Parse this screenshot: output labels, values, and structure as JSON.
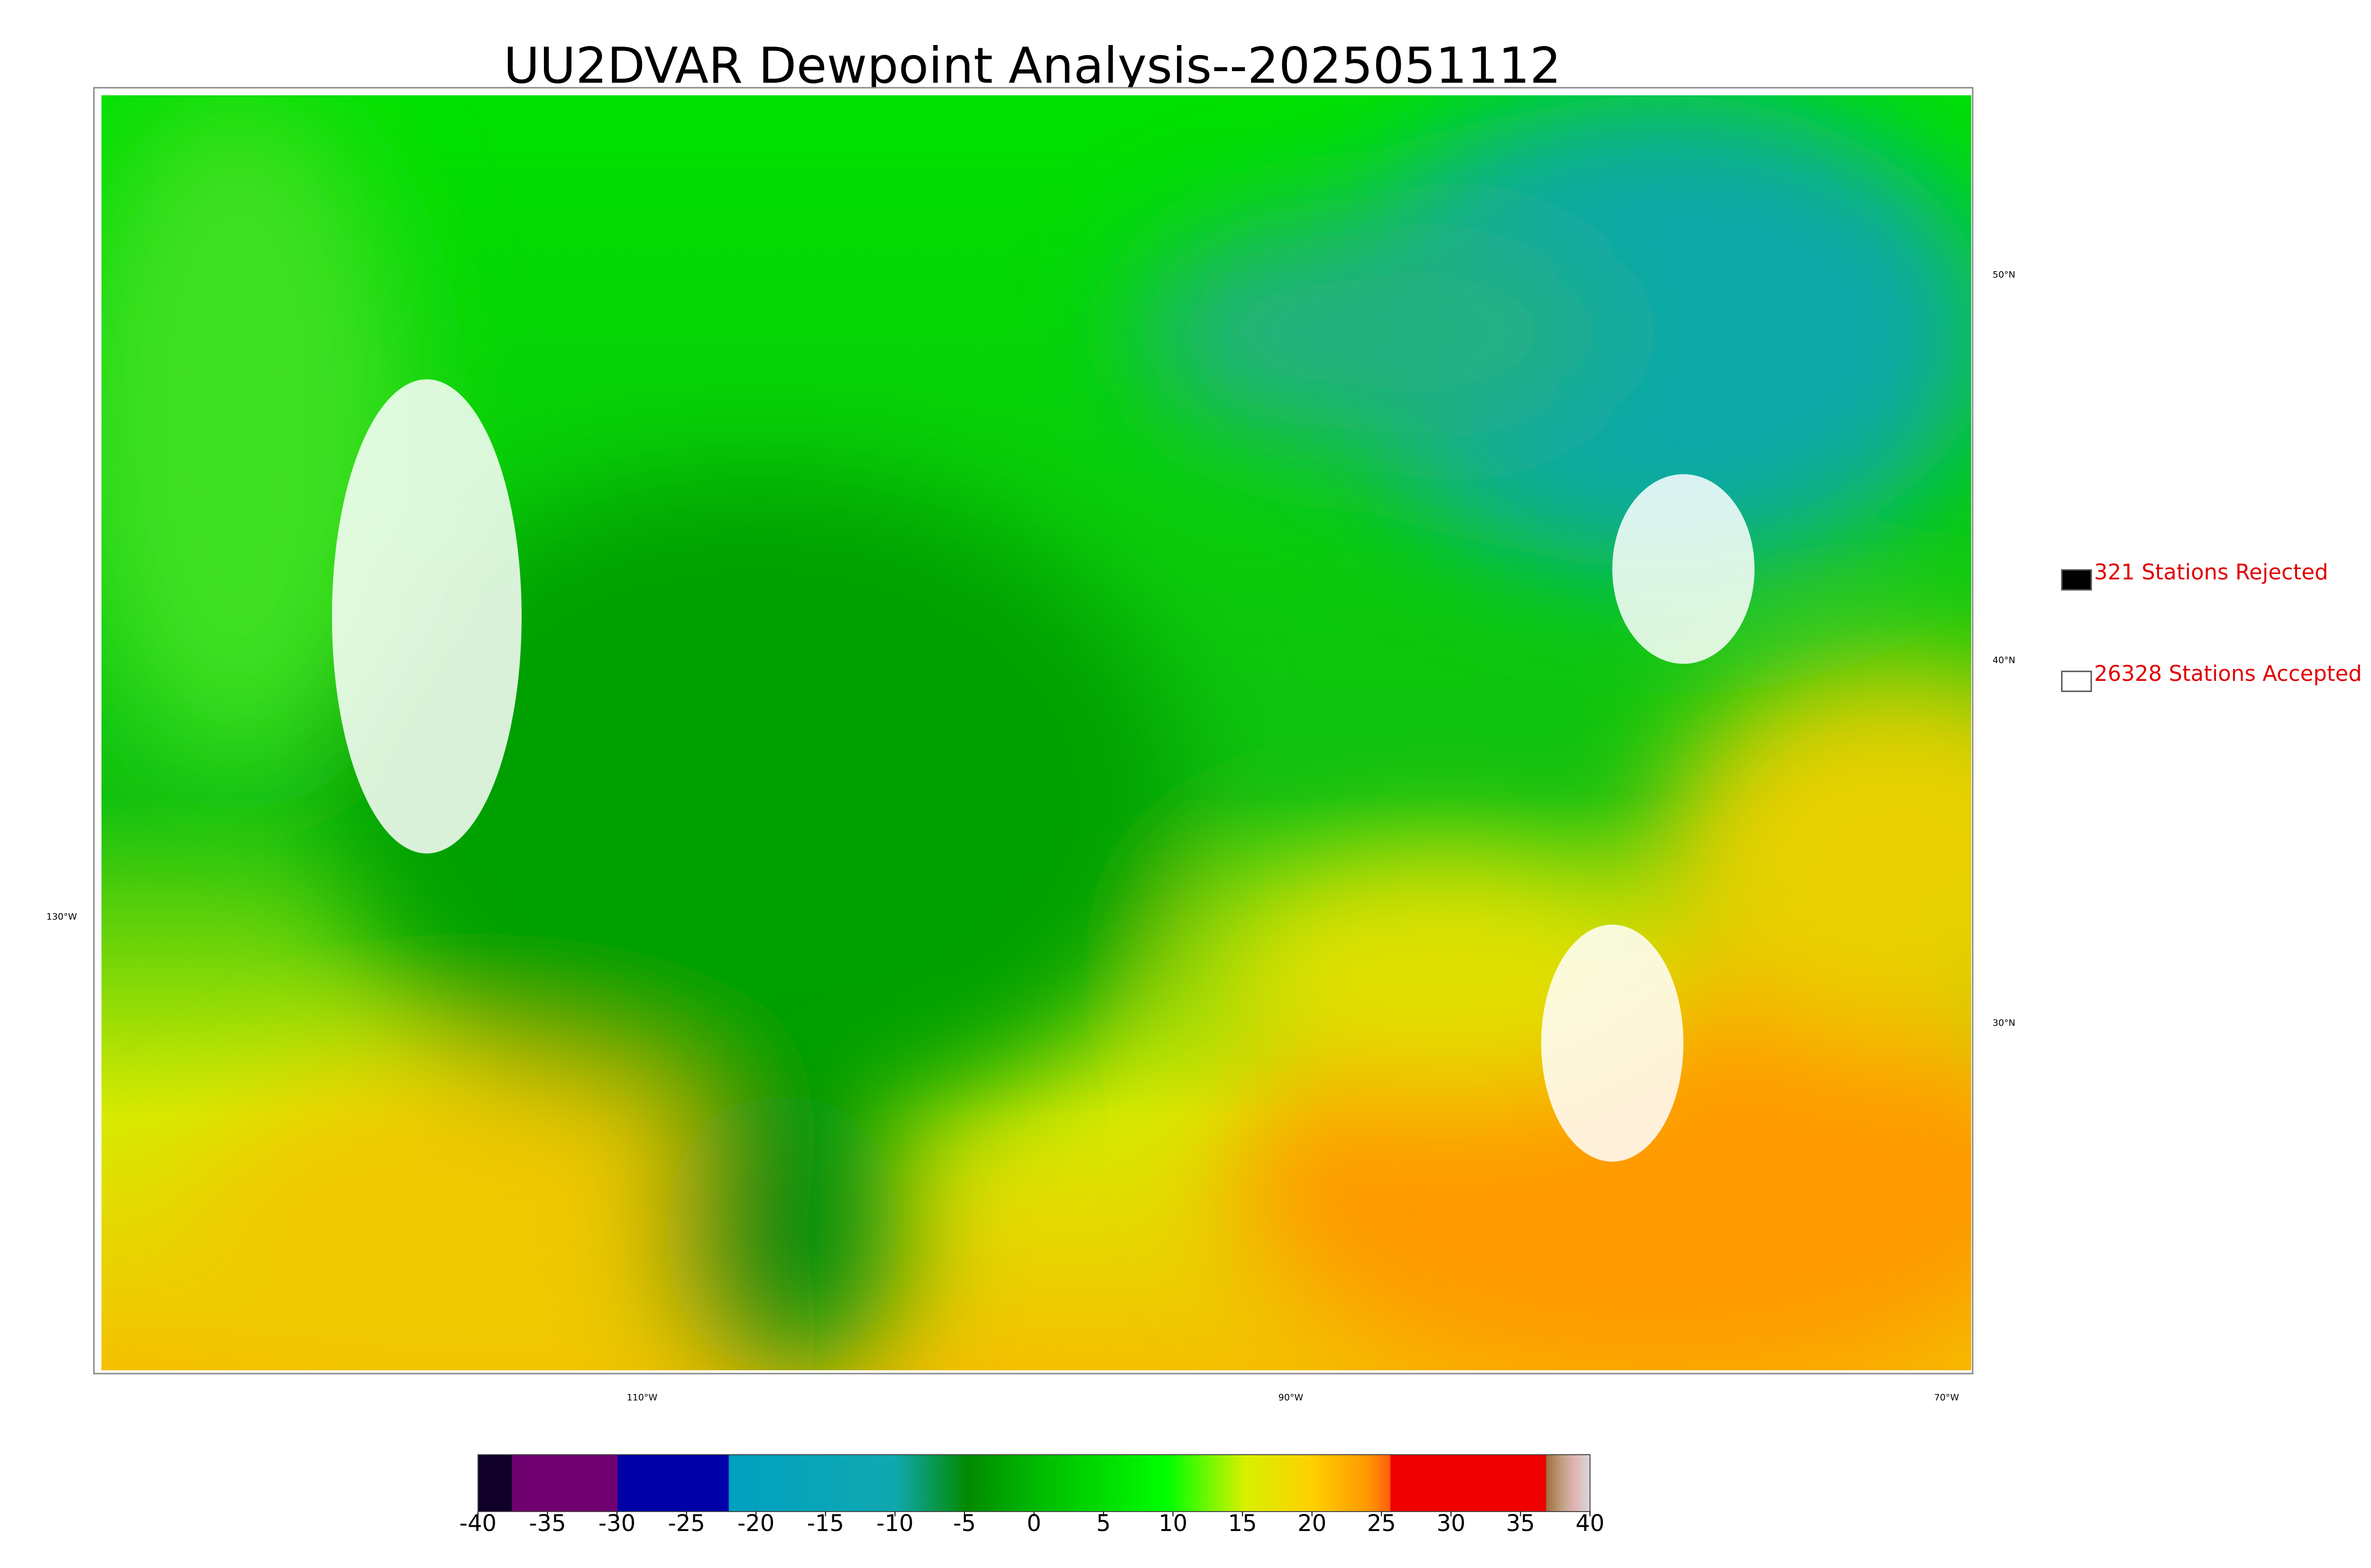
{
  "title": "UU2DVAR Dewpoint Analysis--2025051112",
  "legend": [
    {
      "label": "321 Stations Rejected",
      "color": "#000000"
    },
    {
      "label": "26328 Stations Accepted",
      "color": "#ffffff"
    }
  ],
  "latitude_labels": [
    "50°N",
    "40°N",
    "30°N"
  ],
  "longitude_labels": [
    "130°W",
    "110°W",
    "90°W",
    "70°W"
  ],
  "colorbar": {
    "range": [
      -40,
      40
    ],
    "ticks": [
      -40,
      -35,
      -30,
      -25,
      -20,
      -15,
      -10,
      -5,
      0,
      5,
      10,
      15,
      20,
      25,
      30,
      35,
      40
    ]
  }
}
